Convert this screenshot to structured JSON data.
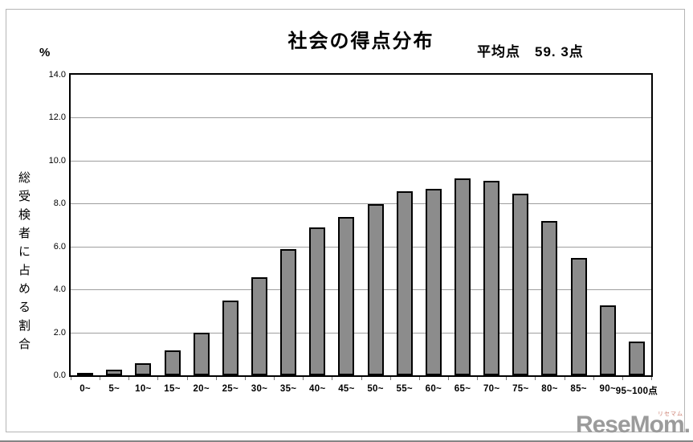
{
  "header": {
    "average_display": "平均点　59. 3点"
  },
  "watermark": {
    "logo_text": "ReseMom",
    "logo_suffix": ".",
    "logo_ruby": "リセマム",
    "logo_color": "#9b9b9b",
    "ruby_color": "#cc7e70"
  },
  "chart_data": {
    "type": "bar",
    "title": "社会の得点分布",
    "annotation": "平均点 59.3点",
    "categories": [
      "0~",
      "5~",
      "10~",
      "15~",
      "20~",
      "25~",
      "30~",
      "35~",
      "40~",
      "45~",
      "50~",
      "55~",
      "60~",
      "65~",
      "70~",
      "75~",
      "80~",
      "85~",
      "90~",
      "95~100点"
    ],
    "values": [
      0.05,
      0.2,
      0.5,
      1.1,
      1.9,
      3.4,
      4.5,
      5.8,
      6.8,
      7.3,
      7.9,
      8.5,
      8.6,
      9.1,
      9.0,
      8.4,
      7.1,
      5.4,
      3.2,
      1.5
    ],
    "xlabel": "",
    "ylabel": "総受検者に占める割合",
    "y_unit": "%",
    "ylim": [
      0,
      14
    ],
    "grid_step": 2,
    "y_ticks": [
      "14.0",
      "12.0",
      "10.0",
      "8.0",
      "6.0",
      "4.0",
      "2.0",
      "0.0"
    ],
    "grid": true,
    "legend": "none",
    "bar_color": "#8c8c8c",
    "bar_border_color": "#000000"
  }
}
